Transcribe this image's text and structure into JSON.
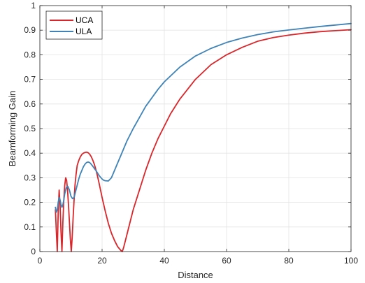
{
  "chart_data": {
    "type": "line",
    "title": "",
    "xlabel": "Distance",
    "ylabel": "Beamforming Gain",
    "xlim": [
      0,
      100
    ],
    "ylim": [
      0,
      1
    ],
    "xticks": [
      0,
      20,
      40,
      60,
      80,
      100
    ],
    "yticks": [
      0,
      0.1,
      0.2,
      0.3,
      0.4,
      0.5,
      0.6,
      0.7,
      0.8,
      0.9,
      1
    ],
    "grid": true,
    "legend": "top-left",
    "series": [
      {
        "name": "UCA",
        "color": "#d9262a",
        "x": [
          5.0,
          5.3,
          5.6,
          5.9,
          6.2,
          6.5,
          6.8,
          7.1,
          7.4,
          7.7,
          8.0,
          8.3,
          8.6,
          8.9,
          9.2,
          9.5,
          9.8,
          10.1,
          10.4,
          10.7,
          11.0,
          11.3,
          11.6,
          12.0,
          12.5,
          13.0,
          13.5,
          14.0,
          14.5,
          15.0,
          15.5,
          16.0,
          16.5,
          17.0,
          17.5,
          18.0,
          18.5,
          19.0,
          19.5,
          20.0,
          21.0,
          22.0,
          23.0,
          24.0,
          25.0,
          26.0,
          26.5,
          27.0,
          28.0,
          29.0,
          30.0,
          32.0,
          34.0,
          36.0,
          38.0,
          40.0,
          42.0,
          45.0,
          50.0,
          55.0,
          60.0,
          65.0,
          70.0,
          75.0,
          80.0,
          85.0,
          90.0,
          95.0,
          100.0
        ],
        "values": [
          0.17,
          0.08,
          0.0,
          0.16,
          0.25,
          0.19,
          0.08,
          0.0,
          0.12,
          0.21,
          0.27,
          0.3,
          0.29,
          0.25,
          0.19,
          0.12,
          0.05,
          0.0,
          0.06,
          0.14,
          0.21,
          0.27,
          0.31,
          0.35,
          0.37,
          0.385,
          0.395,
          0.4,
          0.403,
          0.404,
          0.402,
          0.396,
          0.386,
          0.372,
          0.355,
          0.333,
          0.308,
          0.28,
          0.25,
          0.22,
          0.165,
          0.115,
          0.075,
          0.045,
          0.02,
          0.005,
          0.0,
          0.02,
          0.07,
          0.12,
          0.17,
          0.25,
          0.33,
          0.4,
          0.46,
          0.51,
          0.56,
          0.62,
          0.7,
          0.76,
          0.8,
          0.83,
          0.855,
          0.87,
          0.88,
          0.888,
          0.894,
          0.898,
          0.902
        ]
      },
      {
        "name": "ULA",
        "color": "#3f83b7",
        "x": [
          5.0,
          5.3,
          5.6,
          5.9,
          6.2,
          6.5,
          6.8,
          7.1,
          7.4,
          7.7,
          8.0,
          8.5,
          9.0,
          9.5,
          10.0,
          10.5,
          11.0,
          11.5,
          12.0,
          12.5,
          13.0,
          13.5,
          14.0,
          14.5,
          15.0,
          15.5,
          16.0,
          16.5,
          17.0,
          17.5,
          18.0,
          18.5,
          19.0,
          19.5,
          20.0,
          20.5,
          21.0,
          22.0,
          23.0,
          24.0,
          25.0,
          26.0,
          27.0,
          28.0,
          30.0,
          32.0,
          34.0,
          36.0,
          38.0,
          40.0,
          45.0,
          50.0,
          55.0,
          60.0,
          65.0,
          70.0,
          75.0,
          80.0,
          85.0,
          90.0,
          95.0,
          100.0
        ],
        "values": [
          0.18,
          0.16,
          0.17,
          0.2,
          0.22,
          0.21,
          0.19,
          0.18,
          0.19,
          0.21,
          0.235,
          0.26,
          0.265,
          0.25,
          0.225,
          0.215,
          0.22,
          0.245,
          0.27,
          0.295,
          0.315,
          0.33,
          0.345,
          0.355,
          0.362,
          0.364,
          0.362,
          0.355,
          0.347,
          0.338,
          0.33,
          0.32,
          0.31,
          0.302,
          0.295,
          0.29,
          0.288,
          0.287,
          0.3,
          0.33,
          0.36,
          0.39,
          0.42,
          0.45,
          0.5,
          0.545,
          0.59,
          0.625,
          0.66,
          0.69,
          0.75,
          0.795,
          0.826,
          0.85,
          0.868,
          0.882,
          0.893,
          0.901,
          0.908,
          0.915,
          0.921,
          0.927
        ]
      }
    ]
  }
}
